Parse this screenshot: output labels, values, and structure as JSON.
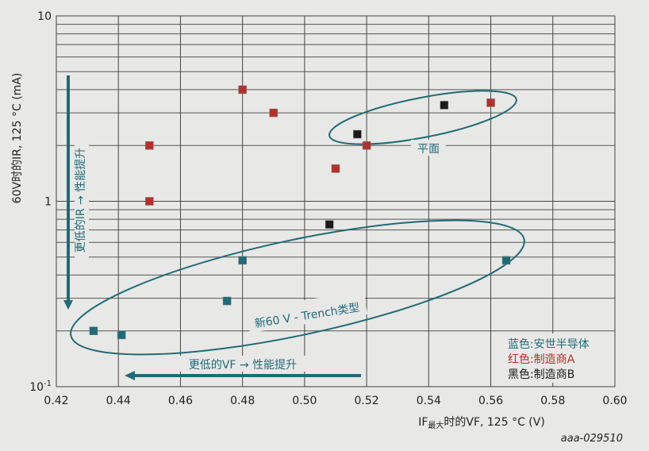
{
  "chart_data": {
    "type": "scatter",
    "xlabel_main": "IF",
    "xlabel_sub": "最大",
    "xlabel_rest": "时的VF, 125 °C (V)",
    "ylabel": "60V时的IR, 125 °C (mA)",
    "xlim": [
      0.42,
      0.6
    ],
    "ylim": [
      0.1,
      10
    ],
    "yscale": "log",
    "grid": true,
    "x_ticks": [
      "0.42",
      "0.44",
      "0.46",
      "0.48",
      "0.50",
      "0.52",
      "0.54",
      "0.56",
      "0.58",
      "0.60"
    ],
    "y_ticks": [
      {
        "v": 10,
        "label": "10"
      },
      {
        "v": 1,
        "label": "1"
      },
      {
        "v": 0.1,
        "label": "10",
        "sup": "-1"
      }
    ],
    "series": [
      {
        "name": "蓝色:安世半导体",
        "color": "#1f6b78",
        "points": [
          [
            0.48,
            0.48
          ],
          [
            0.475,
            0.29
          ],
          [
            0.432,
            0.2
          ],
          [
            0.441,
            0.19
          ],
          [
            0.565,
            0.48
          ]
        ]
      },
      {
        "name": "红色:制造商A",
        "color": "#b5302b",
        "points": [
          [
            0.45,
            2.0
          ],
          [
            0.45,
            1.0
          ],
          [
            0.48,
            4.0
          ],
          [
            0.49,
            3.0
          ],
          [
            0.51,
            1.5
          ],
          [
            0.52,
            2.0
          ],
          [
            0.56,
            3.4
          ]
        ]
      },
      {
        "name": "黑色:制造商B",
        "color": "#1a1a1a",
        "points": [
          [
            0.517,
            2.3
          ],
          [
            0.508,
            0.75
          ],
          [
            0.545,
            3.3
          ]
        ]
      }
    ],
    "legend_placement": "bottom-right",
    "annotations": {
      "planar": "平面",
      "trench": "新60 V - Trench类型",
      "lower_ir": "更低的IR → 性能提升",
      "lower_vf": "更低的VF → 性能提升"
    },
    "annotation_color": "#1f6b78",
    "figure_id": "aaa-029510"
  }
}
